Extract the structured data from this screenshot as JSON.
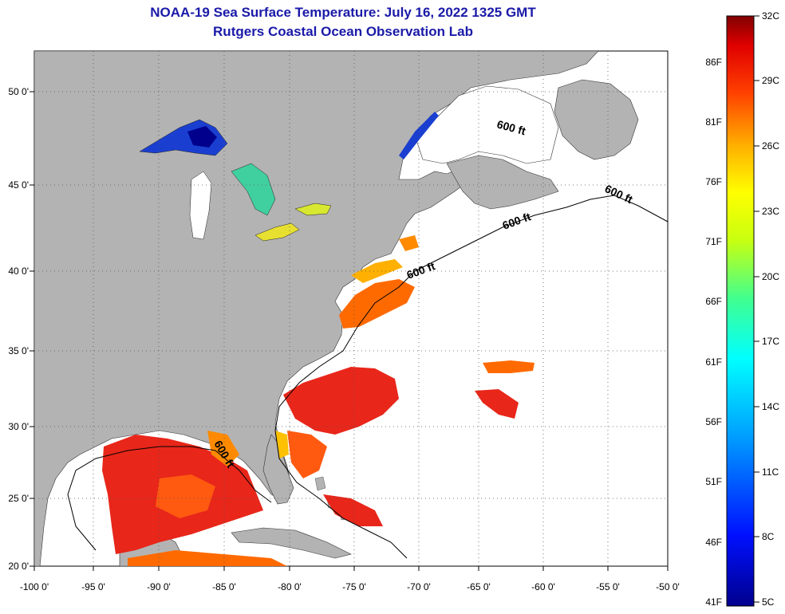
{
  "title": "NOAA-19 Sea Surface Temperature:  July 16, 2022 1325 GMT",
  "subtitle": "Rutgers Coastal Ocean Observation Lab",
  "lon_labels": [
    "-100 0'",
    "-95 0'",
    "-90 0'",
    "-85 0'",
    "-80 0'",
    "-75 0'",
    "-70 0'",
    "-65 0'",
    "-60 0'",
    "-55 0'",
    "-50 0'"
  ],
  "lat_labels": [
    "50 0'",
    "45 0'",
    "40 0'",
    "35 0'",
    "30 0'",
    "25 0'",
    "20 0'"
  ],
  "contour_label": "600 ft",
  "colorbar": {
    "fahrenheit": [
      "86F",
      "81F",
      "76F",
      "71F",
      "66F",
      "61F",
      "56F",
      "51F",
      "46F",
      "41F"
    ],
    "celsius": [
      "32C",
      "29C",
      "26C",
      "23C",
      "20C",
      "17C",
      "14C",
      "11C",
      "8C",
      "5C"
    ]
  },
  "colors": {
    "title": "#1a1aa8",
    "land": "#b3b3b3",
    "warm": "#e8261a",
    "grid": "#555555"
  }
}
